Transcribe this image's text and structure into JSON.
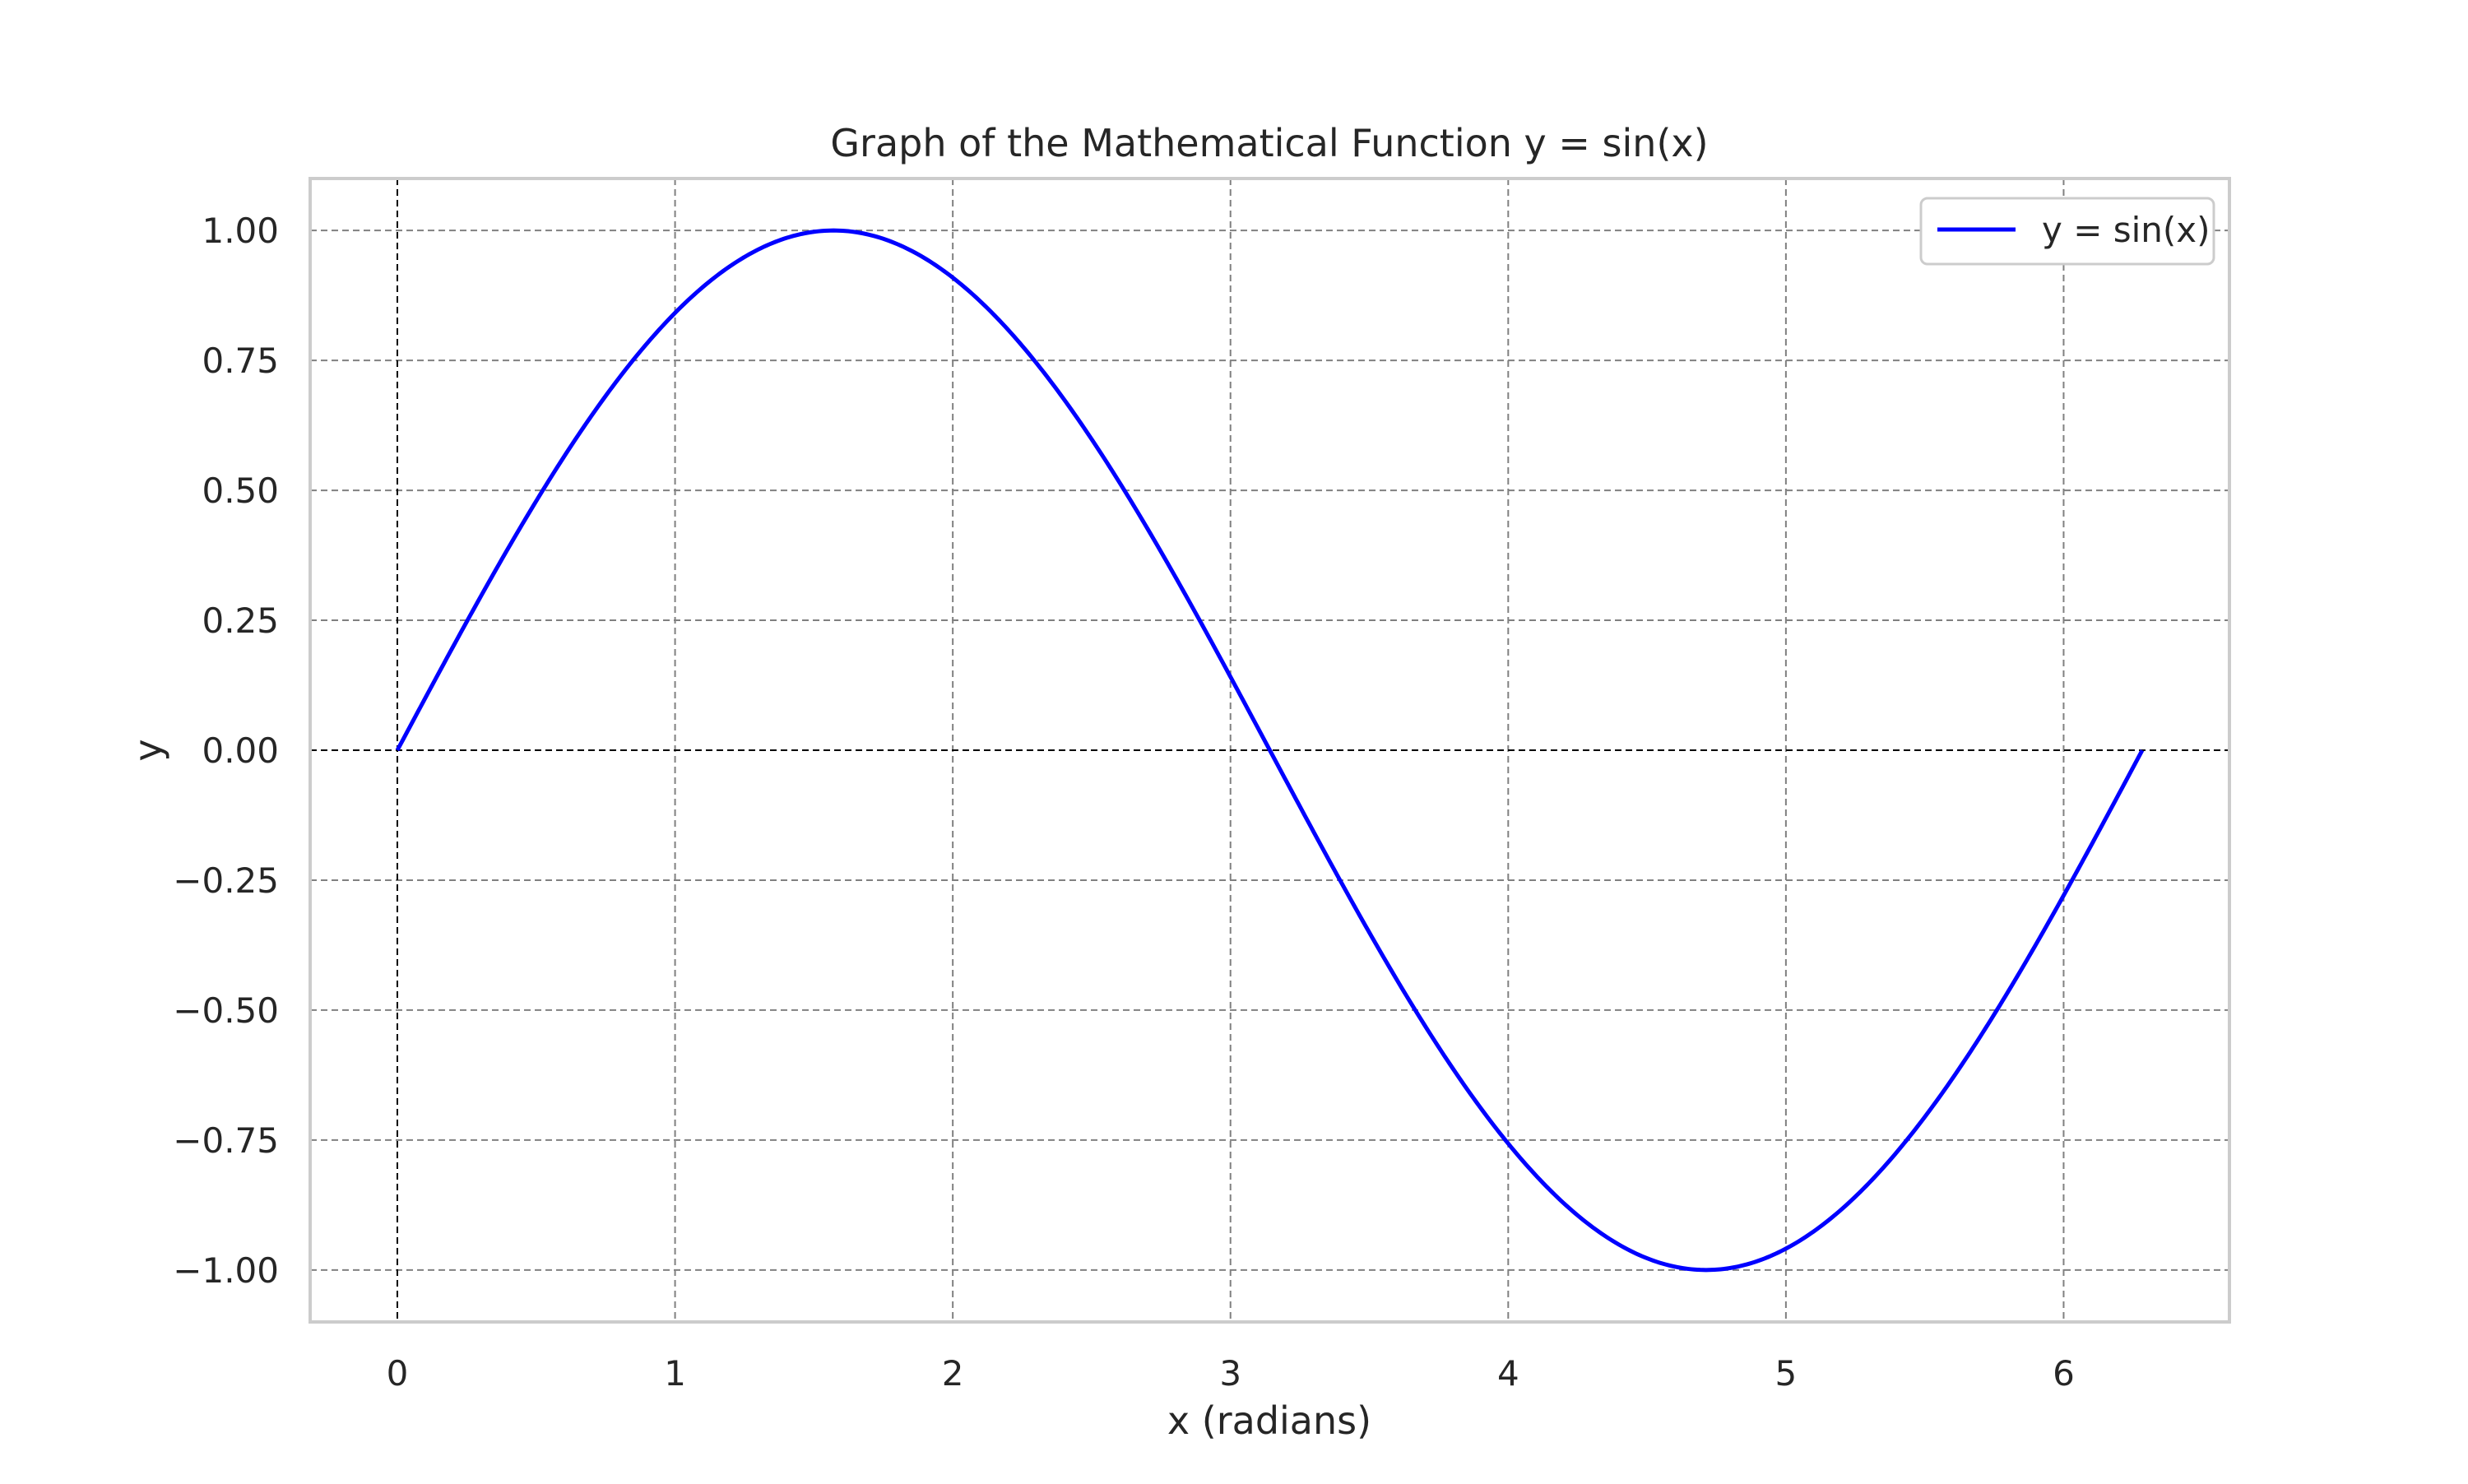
{
  "chart_data": {
    "type": "line",
    "title": "Graph of the Mathematical Function y = sin(x)",
    "xlabel": "x (radians)",
    "ylabel": "y",
    "xlim": [
      -0.314,
      6.597
    ],
    "ylim": [
      -1.1,
      1.1
    ],
    "xticks": [
      0,
      1,
      2,
      3,
      4,
      5,
      6
    ],
    "xtick_labels": [
      "0",
      "1",
      "2",
      "3",
      "4",
      "5",
      "6"
    ],
    "yticks": [
      1.0,
      0.75,
      0.5,
      0.25,
      0.0,
      -0.25,
      -0.5,
      -0.75,
      -1.0
    ],
    "ytick_labels": [
      "1.00",
      "0.75",
      "0.50",
      "0.25",
      "0.00",
      "−0.25",
      "−0.50",
      "−0.75",
      "−1.00"
    ],
    "grid": true,
    "grid_style": "dashed",
    "reference_lines": {
      "y": 0,
      "x": 0,
      "color": "#000000",
      "style": "dashed"
    },
    "legend": {
      "position": "top-right",
      "entries": [
        "y = sin(x)"
      ]
    },
    "series": [
      {
        "name": "y = sin(x)",
        "color": "#0000ff",
        "function": "sin",
        "x_range": [
          0,
          6.283
        ],
        "x": [
          0,
          0.25,
          0.5,
          0.75,
          1.0,
          1.25,
          1.5,
          1.571,
          1.75,
          2.0,
          2.25,
          2.5,
          2.75,
          3.0,
          3.142,
          3.25,
          3.5,
          3.75,
          4.0,
          4.25,
          4.5,
          4.712,
          4.75,
          5.0,
          5.25,
          5.5,
          5.75,
          6.0,
          6.283
        ],
        "y": [
          0,
          0.247,
          0.479,
          0.682,
          0.841,
          0.949,
          0.997,
          1.0,
          0.984,
          0.909,
          0.778,
          0.598,
          0.382,
          0.141,
          0.0,
          -0.108,
          -0.351,
          -0.572,
          -0.757,
          -0.895,
          -0.978,
          -1.0,
          -0.999,
          -0.959,
          -0.859,
          -0.706,
          -0.508,
          -0.279,
          0.0
        ]
      }
    ],
    "colors": {
      "frame": "#cccccc",
      "grid": "#808080",
      "reference": "#000000",
      "text": "#262626",
      "background": "#ffffff"
    }
  }
}
